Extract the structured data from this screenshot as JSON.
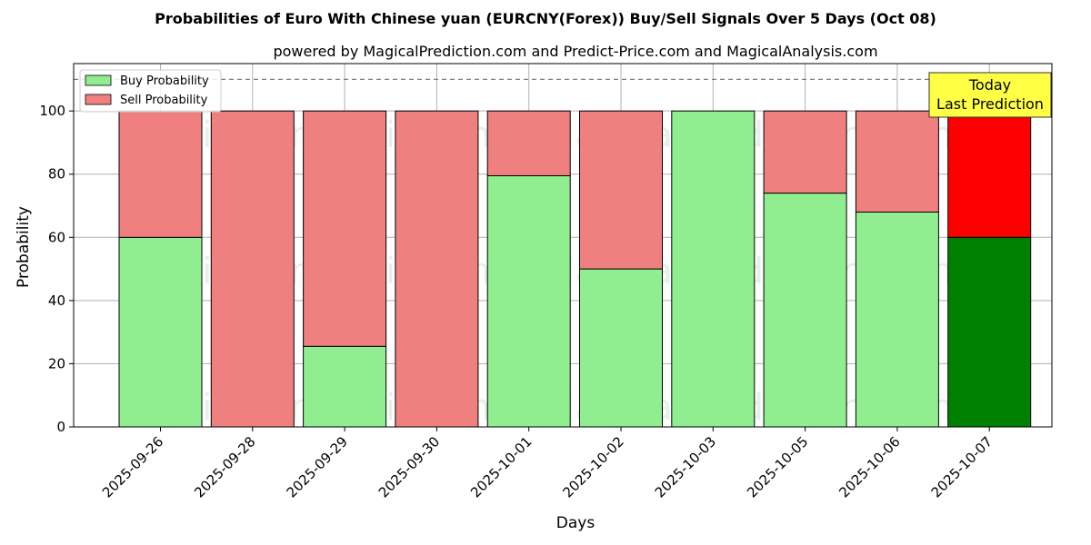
{
  "chart_data": {
    "type": "bar",
    "stacked": true,
    "title": "Probabilities of Euro With Chinese yuan (EURCNY(Forex)) Buy/Sell Signals Over 5 Days (Oct 08)",
    "subtitle": "powered by MagicalPrediction.com and Predict-Price.com and MagicalAnalysis.com",
    "xlabel": "Days",
    "ylabel": "Probability",
    "ylim": [
      0,
      115
    ],
    "yticks": [
      "0",
      "20",
      "40",
      "60",
      "80",
      "100"
    ],
    "grid": true,
    "legend_position": "top-left",
    "reference_line": 110,
    "categories": [
      "2025-09-26",
      "2025-09-28",
      "2025-09-29",
      "2025-09-30",
      "2025-10-01",
      "2025-10-02",
      "2025-10-03",
      "2025-10-05",
      "2025-10-06",
      "2025-10-07"
    ],
    "series": [
      {
        "name": "Buy Probability",
        "color": "#90ee90",
        "values": [
          60,
          0,
          25.5,
          0,
          79.5,
          50,
          100,
          74,
          68,
          60
        ]
      },
      {
        "name": "Sell Probability",
        "color": "#f08080",
        "values": [
          40,
          100,
          74.5,
          100,
          20.5,
          50,
          0,
          26,
          32,
          40
        ]
      }
    ],
    "highlight": {
      "index": 9,
      "buy_color": "#008000",
      "sell_color": "#ff0000",
      "annotation_line1": "Today",
      "annotation_line2": "Last Prediction"
    },
    "watermarks": [
      "MagicalAnalysis.com",
      "MagicalPrediction.com"
    ]
  }
}
